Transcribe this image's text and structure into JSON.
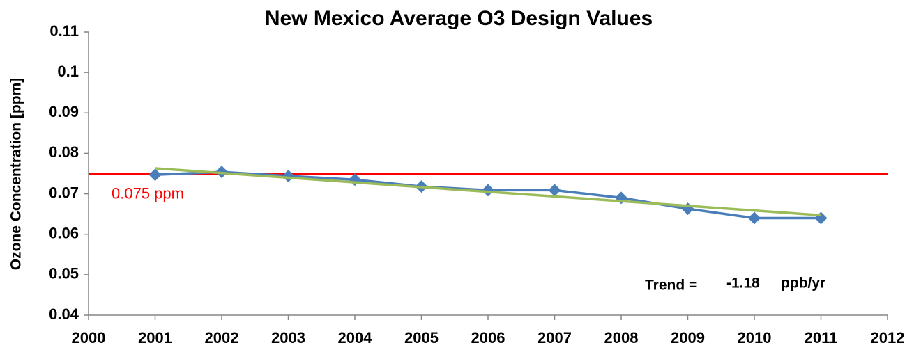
{
  "chart_data": {
    "type": "line",
    "title": "New Mexico Average O3 Design Values",
    "y_label": "Ozone Concentration [ppm]",
    "x": [
      2001,
      2002,
      2003,
      2004,
      2005,
      2006,
      2007,
      2008,
      2009,
      2010,
      2011
    ],
    "series": [
      {
        "color": "#4a7ebb",
        "marker": "diamond",
        "values": [
          0.0747,
          0.0754,
          0.0744,
          0.0735,
          0.0718,
          0.0709,
          0.0709,
          0.069,
          0.0663,
          0.064,
          0.064
        ]
      }
    ],
    "trend_line": {
      "color": "#9bbb59",
      "x": [
        2001,
        2011
      ],
      "values": [
        0.0763,
        0.0647
      ]
    },
    "reference_line": {
      "value": 0.075,
      "label": "0.075 ppm",
      "color": "#ff0000"
    },
    "annotation": {
      "text": "Trend =",
      "value": "-1.18",
      "unit": "ppb/yr"
    },
    "xlim": [
      2000,
      2012
    ],
    "xticks": [
      2000,
      2001,
      2002,
      2003,
      2004,
      2005,
      2006,
      2007,
      2008,
      2009,
      2010,
      2011,
      2012
    ],
    "ylim": [
      0.04,
      0.11
    ],
    "yticks": [
      0.04,
      0.05,
      0.06,
      0.07,
      0.08,
      0.09,
      0.1,
      0.11
    ],
    "grid": false
  }
}
